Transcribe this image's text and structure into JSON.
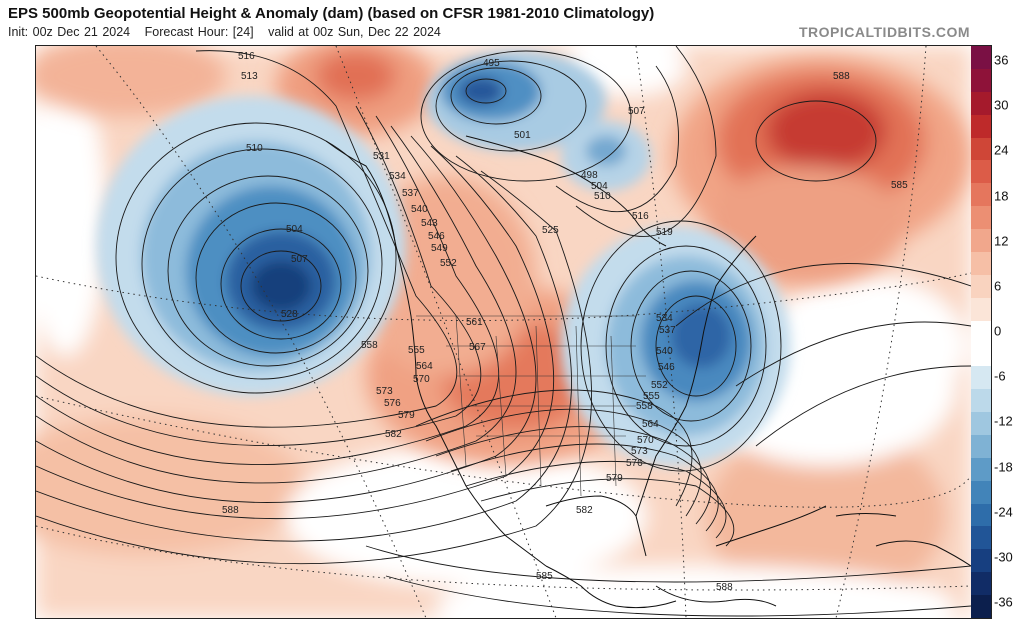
{
  "header": {
    "title": "EPS 500mb Geopotential Height & Anomaly (dam) (based on CFSR 1981-2010 Climatology)",
    "init": "Init: 00z Dec 21 2024",
    "forecast_hour": "Forecast Hour: [24]",
    "valid": "valid at 00z Sun, Dec 22 2024",
    "watermark": "TROPICALTIDBITS.COM"
  },
  "colorbar": {
    "labels": [
      "36",
      "30",
      "24",
      "18",
      "12",
      "6",
      "0",
      "-6",
      "-12",
      "-18",
      "-24",
      "-30",
      "-36"
    ],
    "colors_top_to_bottom": [
      "#7a1044",
      "#8e1239",
      "#a51a2c",
      "#be2a2a",
      "#cf4637",
      "#dc5c48",
      "#e5765d",
      "#ec8f73",
      "#f1a78c",
      "#f6bfa6",
      "#f9d3bf",
      "#fbe5d8",
      "#ffffff",
      "#ffffff",
      "#d6e8f2",
      "#bcd9ea",
      "#9fc7e0",
      "#7fb2d4",
      "#5e9bc7",
      "#4284b9",
      "#2e6daa",
      "#215597",
      "#173f80",
      "#112c66",
      "#0c1f4d"
    ]
  },
  "map_labels": [
    "516",
    "513",
    "510",
    "504",
    "507",
    "528",
    "558",
    "555",
    "564",
    "570",
    "573",
    "576",
    "579",
    "582",
    "588",
    "531",
    "534",
    "537",
    "540",
    "543",
    "546",
    "549",
    "552",
    "561",
    "567",
    "495",
    "501",
    "498",
    "504",
    "510",
    "507",
    "516",
    "519",
    "525",
    "585",
    "588",
    "552",
    "555",
    "558",
    "564",
    "570",
    "573",
    "576",
    "579",
    "582",
    "585",
    "588",
    "540",
    "546",
    "537",
    "534"
  ]
}
